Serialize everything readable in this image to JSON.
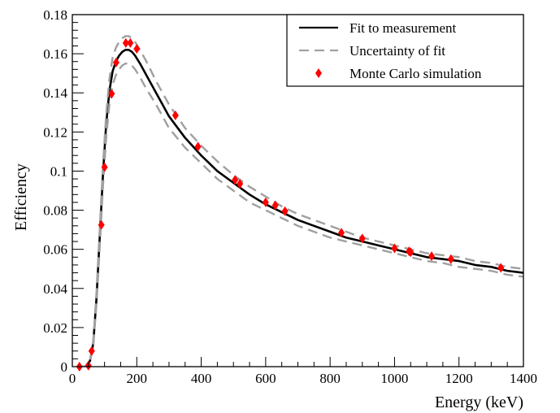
{
  "chart_data": {
    "type": "line",
    "xlabel": "Energy (keV)",
    "ylabel": "Efficiency",
    "xlim": [
      0,
      1400
    ],
    "ylim": [
      0,
      0.18
    ],
    "x_ticks": [
      0,
      200,
      400,
      600,
      800,
      1000,
      1200,
      1400
    ],
    "x_tick_labels": [
      "0",
      "200",
      "400",
      "600",
      "800",
      "1000",
      "1200",
      "1400"
    ],
    "y_ticks": [
      0,
      0.02,
      0.04,
      0.06,
      0.08,
      0.1,
      0.12,
      0.14,
      0.16,
      0.18
    ],
    "y_tick_labels": [
      "0",
      "0.02",
      "0.04",
      "0.06",
      "0.08",
      "0.1",
      "0.12",
      "0.14",
      "0.16",
      "0.18"
    ],
    "grid": false,
    "legend": {
      "placement": "top-right",
      "entries": [
        "Fit to measurement",
        "Uncertainty of fit",
        "Monte Carlo simulation"
      ]
    },
    "colors": {
      "fit": "#000000",
      "uncertainty": "#a0a0a0",
      "mc": "#ff0000"
    },
    "series": [
      {
        "name": "Fit to measurement",
        "style": "solid",
        "x": [
          20,
          40,
          55,
          65,
          75,
          85,
          95,
          105,
          115,
          125,
          135,
          145,
          155,
          165,
          175,
          185,
          195,
          210,
          230,
          260,
          300,
          350,
          400,
          450,
          500,
          550,
          600,
          650,
          700,
          750,
          800,
          850,
          900,
          950,
          1000,
          1050,
          1100,
          1150,
          1200,
          1250,
          1300,
          1350,
          1400
        ],
        "y": [
          0,
          0,
          0.003,
          0.012,
          0.035,
          0.066,
          0.098,
          0.124,
          0.141,
          0.151,
          0.156,
          0.159,
          0.161,
          0.162,
          0.162,
          0.161,
          0.159,
          0.155,
          0.149,
          0.14,
          0.128,
          0.117,
          0.108,
          0.1,
          0.094,
          0.088,
          0.083,
          0.079,
          0.075,
          0.072,
          0.069,
          0.066,
          0.064,
          0.062,
          0.06,
          0.058,
          0.056,
          0.055,
          0.054,
          0.052,
          0.051,
          0.049,
          0.048
        ]
      },
      {
        "name": "Uncertainty of fit",
        "style": "dashed",
        "x": [
          20,
          40,
          55,
          65,
          75,
          85,
          95,
          105,
          115,
          125,
          135,
          145,
          155,
          165,
          175,
          185,
          195,
          210,
          230,
          260,
          300,
          350,
          400,
          450,
          500,
          550,
          600,
          650,
          700,
          750,
          800,
          850,
          900,
          950,
          1000,
          1050,
          1100,
          1150,
          1200,
          1250,
          1300,
          1350,
          1400
        ],
        "y": [
          0,
          0,
          0.0035,
          0.013,
          0.038,
          0.07,
          0.103,
          0.129,
          0.147,
          0.158,
          0.163,
          0.166,
          0.168,
          0.169,
          0.169,
          0.168,
          0.166,
          0.162,
          0.156,
          0.146,
          0.134,
          0.122,
          0.113,
          0.105,
          0.098,
          0.092,
          0.087,
          0.082,
          0.078,
          0.075,
          0.072,
          0.069,
          0.066,
          0.064,
          0.062,
          0.06,
          0.058,
          0.057,
          0.056,
          0.054,
          0.053,
          0.051,
          0.05
        ]
      },
      {
        "style": "dashed",
        "x": [
          20,
          40,
          55,
          65,
          75,
          85,
          95,
          105,
          115,
          125,
          135,
          145,
          155,
          165,
          175,
          185,
          195,
          210,
          230,
          260,
          300,
          350,
          400,
          450,
          500,
          550,
          600,
          650,
          700,
          750,
          800,
          850,
          900,
          950,
          1000,
          1050,
          1100,
          1150,
          1200,
          1250,
          1300,
          1350,
          1400
        ],
        "y": [
          0,
          0,
          0.0025,
          0.011,
          0.032,
          0.061,
          0.092,
          0.117,
          0.134,
          0.144,
          0.149,
          0.152,
          0.154,
          0.155,
          0.155,
          0.154,
          0.152,
          0.148,
          0.142,
          0.134,
          0.122,
          0.112,
          0.104,
          0.096,
          0.09,
          0.084,
          0.08,
          0.076,
          0.072,
          0.069,
          0.066,
          0.064,
          0.062,
          0.06,
          0.058,
          0.056,
          0.054,
          0.053,
          0.051,
          0.05,
          0.049,
          0.047,
          0.046
        ]
      },
      {
        "name": "Monte Carlo simulation",
        "style": "markers",
        "x": [
          22,
          50,
          60,
          90,
          100,
          122,
          136,
          166,
          180,
          200,
          320,
          390,
          505,
          520,
          600,
          630,
          660,
          835,
          900,
          1000,
          1045,
          1050,
          1115,
          1175,
          1330
        ],
        "y": [
          0,
          0.0005,
          0.008,
          0.0725,
          0.102,
          0.1395,
          0.1555,
          0.1655,
          0.1655,
          0.1625,
          0.1285,
          0.1125,
          0.0955,
          0.0935,
          0.084,
          0.0825,
          0.0795,
          0.0685,
          0.0655,
          0.0605,
          0.059,
          0.0585,
          0.0565,
          0.055,
          0.0505
        ]
      }
    ]
  }
}
